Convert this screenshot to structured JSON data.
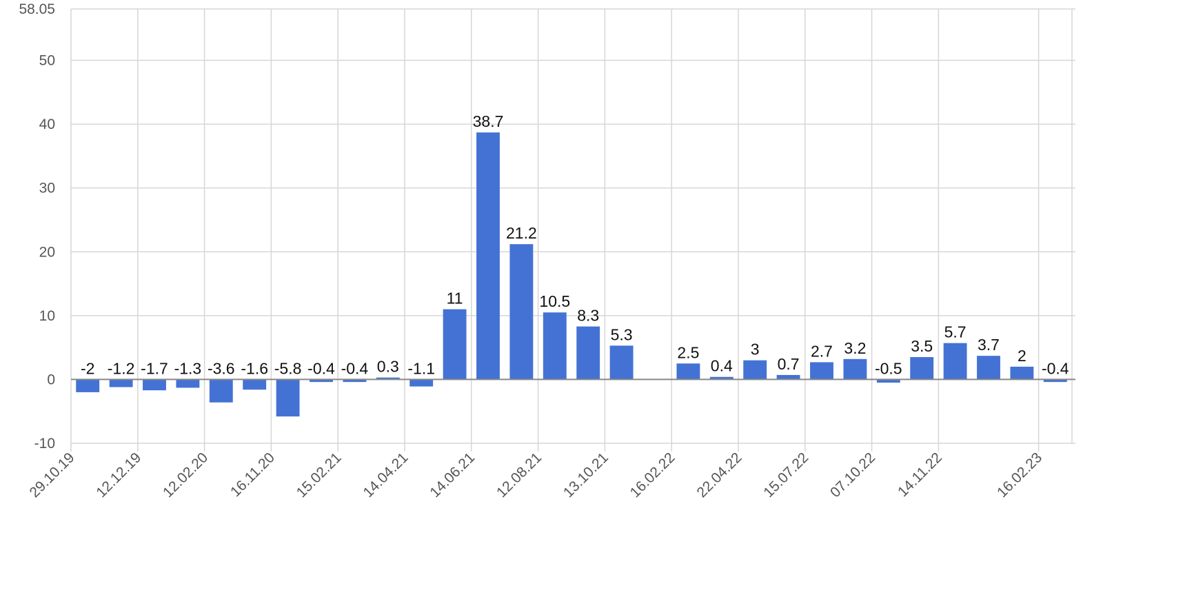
{
  "chart_data": {
    "type": "bar",
    "title": "",
    "xlabel": "",
    "ylabel": "",
    "ylim": [
      -10,
      58.05
    ],
    "y_ticks": [
      -10,
      0,
      10,
      20,
      30,
      40,
      50,
      58.05
    ],
    "grid": true,
    "legend": "none",
    "bar_color": "#4472D4",
    "values": [
      -2,
      -1.2,
      -1.7,
      -1.3,
      -3.6,
      -1.6,
      -5.8,
      -0.4,
      -0.4,
      0.3,
      -1.1,
      11,
      38.7,
      21.2,
      10.5,
      8.3,
      5.3,
      null,
      2.5,
      0.4,
      3,
      0.7,
      2.7,
      3.2,
      -0.5,
      3.5,
      5.7,
      3.7,
      2,
      -0.4
    ],
    "data_labels": [
      "-2",
      "-1.2",
      "-1.7",
      "-1.3",
      "-3.6",
      "-1.6",
      "-5.8",
      "-0.4",
      "-0.4",
      "0.3",
      "-1.1",
      "11",
      "38.7",
      "21.2",
      "10.5",
      "8.3",
      "5.3",
      "",
      "2.5",
      "0.4",
      "3",
      "0.7",
      "2.7",
      "3.2",
      "-0.5",
      "3.5",
      "5.7",
      "3.7",
      "2",
      "-0.4"
    ],
    "x_ticks": [
      {
        "label": "29.10.19",
        "before_bar": 0
      },
      {
        "label": "12.12.19",
        "before_bar": 2
      },
      {
        "label": "12.02.20",
        "before_bar": 4
      },
      {
        "label": "16.11.20",
        "before_bar": 6
      },
      {
        "label": "15.02.21",
        "before_bar": 8
      },
      {
        "label": "14.04.21",
        "before_bar": 10
      },
      {
        "label": "14.06.21",
        "before_bar": 12
      },
      {
        "label": "12.08.21",
        "before_bar": 14
      },
      {
        "label": "13.10.21",
        "before_bar": 16
      },
      {
        "label": "16.02.22",
        "before_bar": 18
      },
      {
        "label": "22.04.22",
        "before_bar": 20
      },
      {
        "label": "15.07.22",
        "before_bar": 22
      },
      {
        "label": "07.10.22",
        "before_bar": 24
      },
      {
        "label": "14.11.22",
        "before_bar": 26
      },
      {
        "label": "16.02.23",
        "before_bar": 29
      }
    ]
  }
}
